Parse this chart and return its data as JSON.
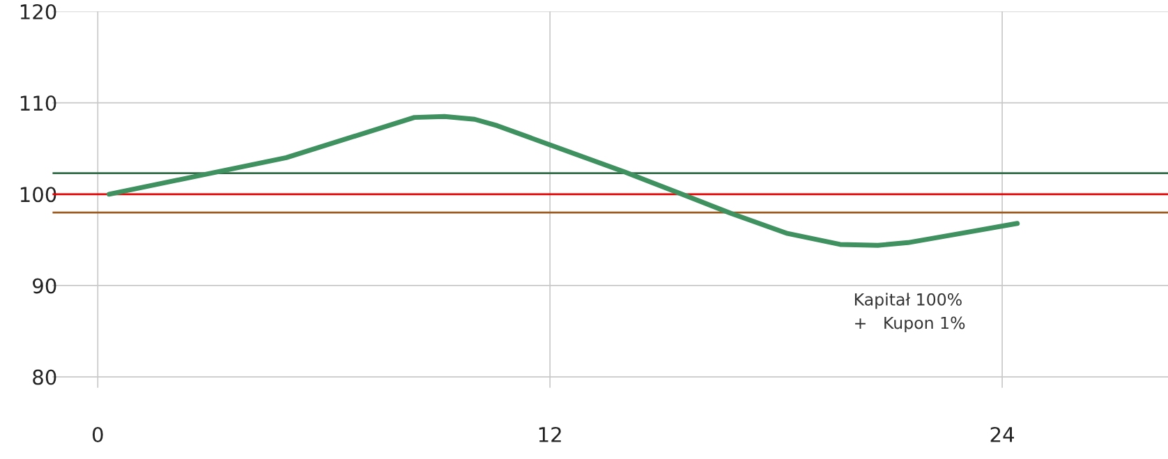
{
  "chart_data": {
    "type": "line",
    "x": [
      0.3,
      5.0,
      8.4,
      9.2,
      10.0,
      10.6,
      12.0,
      14.0,
      15.5,
      16.8,
      18.3,
      19.7,
      20.7,
      21.5,
      22.9,
      24.4
    ],
    "series": [
      {
        "color": "#3f9160",
        "values": [
          100.0,
          104.0,
          108.4,
          108.5,
          108.2,
          107.5,
          105.4,
          102.4,
          100.0,
          97.9,
          95.7,
          94.5,
          94.4,
          94.7,
          95.7,
          96.8
        ]
      }
    ],
    "xlim": [
      -1.2,
      28.4
    ],
    "ylim": [
      78.8,
      120
    ],
    "xticks": [
      0,
      12,
      24
    ],
    "yticks": [
      80,
      90,
      100,
      110,
      120
    ],
    "grid": true,
    "marker": "none",
    "line_style": "solid",
    "ref_lines": [
      {
        "axis": "y",
        "value": 102.3,
        "color": "#2e6b45"
      },
      {
        "axis": "y",
        "value": 100,
        "color": "#e00000"
      },
      {
        "axis": "y",
        "value": 98.0,
        "color": "#9c5a1e"
      }
    ],
    "annotations": [
      "Kapitał 100%\n+   Kupon 1%"
    ]
  }
}
